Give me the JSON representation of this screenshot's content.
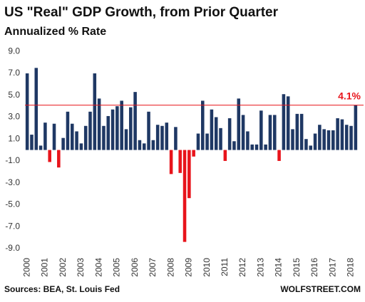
{
  "chart_data": {
    "type": "bar",
    "title": "US \"Real\" GDP Growth, from Prior Quarter",
    "subtitle": "Annualized % Rate",
    "source": "Sources: BEA, St. Louis Fed",
    "watermark": "WOLFSTREET.COM",
    "categories": [
      "2000",
      null,
      null,
      null,
      "2001",
      null,
      null,
      null,
      "2002",
      null,
      null,
      null,
      "2003",
      null,
      null,
      null,
      "2004",
      null,
      null,
      null,
      "2005",
      null,
      null,
      null,
      "2006",
      null,
      null,
      null,
      "2007",
      null,
      null,
      null,
      "2008",
      null,
      null,
      null,
      "2009",
      null,
      null,
      null,
      "2010",
      null,
      null,
      null,
      "2011",
      null,
      null,
      null,
      "2012",
      null,
      null,
      null,
      "2013",
      null,
      null,
      null,
      "2014",
      null,
      null,
      null,
      "2015",
      null,
      null,
      null,
      "2016",
      null,
      null,
      null,
      "2017",
      null,
      null,
      null,
      "2018",
      null
    ],
    "values": [
      7.0,
      1.4,
      7.5,
      0.4,
      2.5,
      -1.1,
      2.4,
      -1.6,
      1.1,
      3.5,
      2.4,
      1.7,
      0.6,
      2.2,
      3.5,
      7.0,
      4.7,
      2.2,
      3.1,
      3.7,
      4.0,
      4.5,
      1.9,
      3.9,
      5.3,
      0.9,
      0.6,
      3.5,
      0.9,
      2.3,
      2.2,
      2.5,
      -2.2,
      2.1,
      -2.1,
      -8.4,
      -4.4,
      -0.6,
      1.5,
      4.5,
      1.5,
      3.7,
      3.0,
      2.0,
      -1.0,
      2.9,
      0.8,
      4.7,
      3.2,
      1.7,
      0.5,
      0.5,
      3.6,
      0.5,
      3.2,
      3.2,
      -1.0,
      5.1,
      4.9,
      1.9,
      3.3,
      3.3,
      1.0,
      0.4,
      1.5,
      2.3,
      1.9,
      1.8,
      1.8,
      2.9,
      2.8,
      2.3,
      2.2,
      4.1
    ],
    "color": "#1f3864",
    "negative_color": "#e8141b",
    "ylim": [
      -9.4,
      9.8
    ],
    "yticks": [
      {
        "value": -9,
        "label": "-9.0"
      },
      {
        "value": -7,
        "label": "-7.0"
      },
      {
        "value": -5,
        "label": "-5.0"
      },
      {
        "value": -3,
        "label": "-3.0"
      },
      {
        "value": -1,
        "label": "-1.0"
      },
      {
        "value": 1,
        "label": "1.0"
      },
      {
        "value": 3,
        "label": "3.0"
      },
      {
        "value": 5,
        "label": "5.0"
      },
      {
        "value": 7,
        "label": "7.0"
      },
      {
        "value": 9,
        "label": "9.0"
      }
    ],
    "reference_line": {
      "value": 4.1,
      "label": "4.1%",
      "color": "#e8141b"
    }
  }
}
